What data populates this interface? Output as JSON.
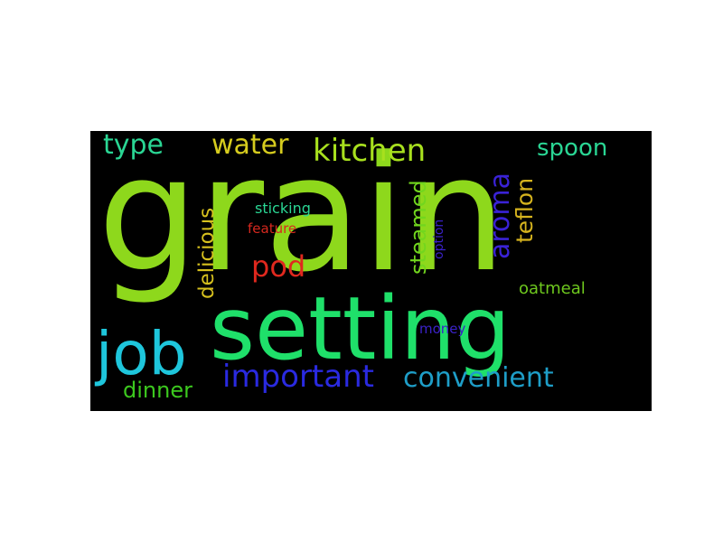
{
  "words": {
    "grain": {
      "text": "grain",
      "color": "#8ed81c"
    },
    "setting": {
      "text": "setting",
      "color": "#1fe06a"
    },
    "job": {
      "text": "job",
      "color": "#1ec6dc"
    },
    "important": {
      "text": "important",
      "color": "#2a2ae0"
    },
    "convenient": {
      "text": "convenient",
      "color": "#1e9ec8"
    },
    "kitchen": {
      "text": "kitchen",
      "color": "#a8e01e"
    },
    "water": {
      "text": "water",
      "color": "#d6cc1e"
    },
    "type": {
      "text": "type",
      "color": "#2ad694"
    },
    "spoon": {
      "text": "spoon",
      "color": "#2ad694"
    },
    "pod": {
      "text": "pod",
      "color": "#e0281e"
    },
    "dinner": {
      "text": "dinner",
      "color": "#3cc81e"
    },
    "delicious": {
      "text": "delicious",
      "color": "#d6c01e"
    },
    "steamed": {
      "text": "steamed",
      "color": "#72d61e"
    },
    "aroma": {
      "text": "aroma",
      "color": "#3a22d6"
    },
    "teflon": {
      "text": "teflon",
      "color": "#d6b41e"
    },
    "sticking": {
      "text": "sticking",
      "color": "#2ad694"
    },
    "feature": {
      "text": "feature",
      "color": "#d6281e"
    },
    "option": {
      "text": "option",
      "color": "#3a22c8"
    },
    "oatmeal": {
      "text": "oatmeal",
      "color": "#6ec81e"
    },
    "money": {
      "text": "money",
      "color": "#3a22c8"
    }
  }
}
